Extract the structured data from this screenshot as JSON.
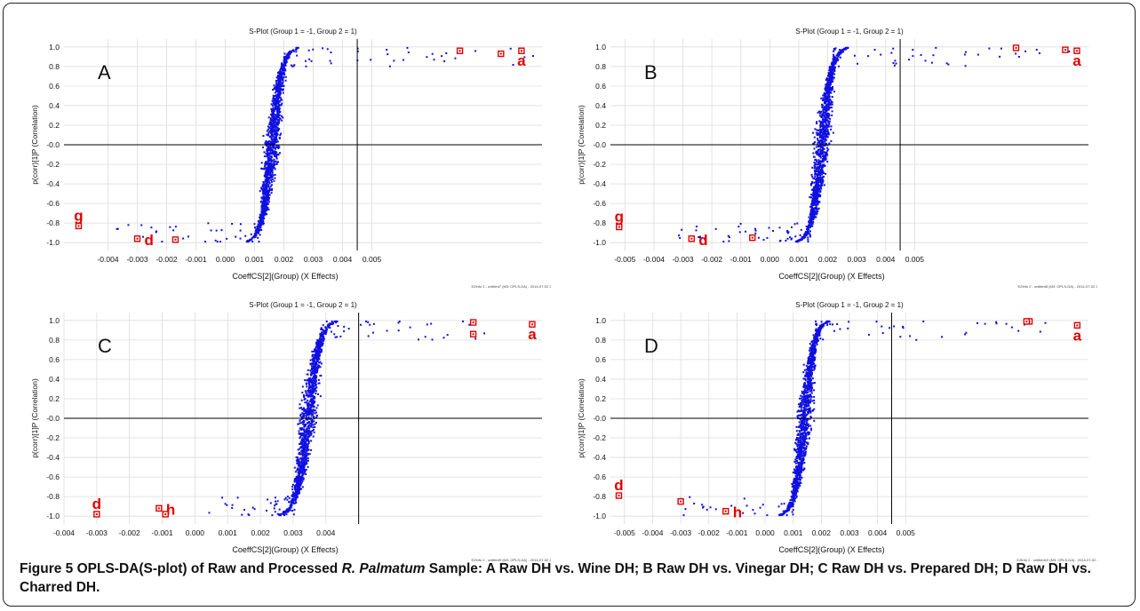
{
  "chart_data": [
    {
      "panel": "A",
      "type": "scatter",
      "title": "S-Plot (Group 1 = -1, Group 2 = 1)",
      "xlabel": "CoeffCS[2](Group) (X Effects)",
      "ylabel": "p(corr)[1]P (Correlation)",
      "footer": "EZinfo 2 - untitled7 (M3: OPLS-DA) - 2014-07-02 22:20:33 (UTC-8)",
      "xlim": [
        -0.0055,
        0.0108
      ],
      "ylim": [
        -1.08,
        1.08
      ],
      "xticks": [
        -0.004,
        -0.003,
        -0.002,
        -0.001,
        0.0,
        0.001,
        0.002,
        0.003,
        0.004,
        0.005
      ],
      "xticklabels": [
        "-0.004",
        "-0.003",
        "-0.002",
        "-0.001",
        "0.000",
        "0.001",
        "0.002",
        "0.003",
        "0.004",
        "0.005"
      ],
      "yticks": [
        -1.0,
        -0.8,
        -0.6,
        -0.4,
        -0.2,
        0.0,
        0.2,
        0.4,
        0.6,
        0.8,
        1.0
      ],
      "yticklabels": [
        "-1.0",
        "-0.8",
        "-0.6",
        "-0.4",
        "-0.2",
        "-0.0",
        "0.2",
        "0.4",
        "0.6",
        "0.8",
        "1.0"
      ],
      "scurve": {
        "x_lo": -0.0012,
        "x_hi": 0.0034,
        "x_neg_outlier": -0.004,
        "x_pos_outlier": 0.0105
      },
      "cloud_shift": 0.0045,
      "highlighted": [
        {
          "x": 0.0101,
          "y": 0.96,
          "label": "a"
        },
        {
          "x": 0.0094,
          "y": 0.93,
          "label": ""
        },
        {
          "x": 0.008,
          "y": 0.96,
          "label": ""
        },
        {
          "x": -0.005,
          "y": -0.83,
          "label": "g"
        },
        {
          "x": -0.003,
          "y": -0.96,
          "label": "d"
        },
        {
          "x": -0.0017,
          "y": -0.97,
          "label": ""
        }
      ],
      "panel_letter": "A"
    },
    {
      "panel": "B",
      "type": "scatter",
      "title": "S-Plot (Group 1 = -1, Group 2 = 1)",
      "xlabel": "CoeffCS[2](Group) (X Effects)",
      "ylabel": "p(corr)[1]P (Correlation)",
      "footer": "EZinfo 2 - untitled8 (M3: OPLS-DA) - 2014-07-02 22:24:28 (UTC-8)",
      "xlim": [
        -0.0055,
        0.011
      ],
      "ylim": [
        -1.08,
        1.08
      ],
      "xticks": [
        -0.005,
        -0.004,
        -0.003,
        -0.002,
        -0.001,
        0.0,
        0.001,
        0.002,
        0.003,
        0.004,
        0.005
      ],
      "xticklabels": [
        "-0.005",
        "-0.004",
        "-0.003",
        "-0.002",
        "-0.001",
        "0.000",
        "0.001",
        "0.002",
        "0.003",
        "0.004",
        "0.005"
      ],
      "yticks": [
        -1.0,
        -0.8,
        -0.6,
        -0.4,
        -0.2,
        0.0,
        0.2,
        0.4,
        0.6,
        0.8,
        1.0
      ],
      "yticklabels": [
        "-1.0",
        "-0.8",
        "-0.6",
        "-0.4",
        "-0.2",
        "-0.0",
        "0.2",
        "0.4",
        "0.6",
        "0.8",
        "1.0"
      ],
      "scurve": {
        "x_lo": -0.0008,
        "x_hi": 0.0034,
        "x_neg_outlier": -0.0028,
        "x_pos_outlier": 0.0104
      },
      "cloud_shift": 0.0045,
      "highlighted": [
        {
          "x": 0.0106,
          "y": 0.96,
          "label": "a"
        },
        {
          "x": 0.0102,
          "y": 0.97,
          "label": ""
        },
        {
          "x": 0.0085,
          "y": 0.99,
          "label": ""
        },
        {
          "x": -0.0052,
          "y": -0.84,
          "label": "g"
        },
        {
          "x": -0.0027,
          "y": -0.96,
          "label": "d"
        },
        {
          "x": -0.0006,
          "y": -0.95,
          "label": ""
        }
      ],
      "panel_letter": "B"
    },
    {
      "panel": "C",
      "type": "scatter",
      "title": "S-Plot (Group 1 = -1, Group 2 = 1)",
      "xlabel": "CoeffCS[2](Group) (X Effects)",
      "ylabel": "p(corr)[1]P (Correlation)",
      "footer": "EZinfo 2 - untitled9 (M3: OPLS-DA) - 2014-07-02 22:30:38 (UTC-8)",
      "xlim": [
        -0.004,
        0.0106
      ],
      "ylim": [
        -1.08,
        1.08
      ],
      "xticks": [
        -0.004,
        -0.003,
        -0.002,
        -0.001,
        0.0,
        0.001,
        0.002,
        0.003,
        0.004
      ],
      "xticklabels": [
        "-0.004",
        "-0.003",
        "-0.002",
        "-0.001",
        "0.000",
        "0.001",
        "0.002",
        "0.003",
        "0.004"
      ],
      "yticks": [
        -1.0,
        -0.8,
        -0.6,
        -0.4,
        -0.2,
        0.0,
        0.2,
        0.4,
        0.6,
        0.8,
        1.0
      ],
      "yticklabels": [
        "-1.0",
        "-0.8",
        "-0.6",
        "-0.4",
        "-0.2",
        "-0.0",
        "0.2",
        "0.4",
        "0.6",
        "0.8",
        "1.0"
      ],
      "scurve": {
        "x_lo": 0.0004,
        "x_hi": 0.0055,
        "x_neg_outlier": 0.0004,
        "x_pos_outlier": 0.0085
      },
      "cloud_shift": 0.005,
      "highlighted": [
        {
          "x": 0.0103,
          "y": 0.96,
          "label": "a"
        },
        {
          "x": 0.0085,
          "y": 0.98,
          "label": ""
        },
        {
          "x": 0.0085,
          "y": 0.86,
          "label": ""
        },
        {
          "x": -0.003,
          "y": -0.98,
          "label": "d"
        },
        {
          "x": -0.0011,
          "y": -0.92,
          "label": "h"
        },
        {
          "x": -0.0009,
          "y": -0.98,
          "label": ""
        }
      ],
      "panel_letter": "C"
    },
    {
      "panel": "D",
      "type": "scatter",
      "title": "S-Plot (Group 1 = -1, Group 2 = 1)",
      "xlabel": "CoeffCS[2](Group) (X Effects)",
      "ylabel": "p(corr)[1]P (Correlation)",
      "footer": "EZinfo 2 - untitled10 (M3: OPLS-DA) - 2014-07-02 22:33:16 (UTC-8)",
      "xlim": [
        -0.0055,
        0.0115
      ],
      "ylim": [
        -1.08,
        1.08
      ],
      "xticks": [
        -0.005,
        -0.004,
        -0.003,
        -0.002,
        -0.001,
        0.0,
        0.001,
        0.002,
        0.003,
        0.004,
        0.005
      ],
      "xticklabels": [
        "-0.005",
        "-0.004",
        "-0.003",
        "-0.002",
        "-0.001",
        "0.000",
        "0.001",
        "0.002",
        "0.003",
        "0.004",
        "0.005"
      ],
      "yticks": [
        -1.0,
        -0.8,
        -0.6,
        -0.4,
        -0.2,
        0.0,
        0.2,
        0.4,
        0.6,
        0.8,
        1.0
      ],
      "yticklabels": [
        "-1.0",
        "-0.8",
        "-0.6",
        "-0.4",
        "-0.2",
        "-0.0",
        "0.2",
        "0.4",
        "0.6",
        "0.8",
        "1.0"
      ],
      "scurve": {
        "x_lo": -0.0016,
        "x_hi": 0.0034,
        "x_neg_outlier": -0.003,
        "x_pos_outlier": 0.0106
      },
      "cloud_shift": 0.0045,
      "highlighted": [
        {
          "x": 0.0111,
          "y": 0.95,
          "label": "a"
        },
        {
          "x": 0.0094,
          "y": 0.99,
          "label": ""
        },
        {
          "x": 0.0093,
          "y": 0.99,
          "label": ""
        },
        {
          "x": -0.0052,
          "y": -0.79,
          "label": "d"
        },
        {
          "x": -0.003,
          "y": -0.85,
          "label": ""
        },
        {
          "x": -0.0014,
          "y": -0.95,
          "label": "h"
        }
      ],
      "panel_letter": "D"
    }
  ],
  "colors": {
    "points": "#1010e0",
    "highlight": "#e00000",
    "axis_lines": "#000000",
    "grid": "#dcdcdc"
  },
  "caption": {
    "figure_label": "Figure 5",
    "text_before_italic": " OPLS-DA(S-plot) of Raw and Processed ",
    "italic_species": "R. Palmatum",
    "text_after_italic": " Sample: A Raw DH vs. Wine DH; B Raw DH vs. Vinegar DH; C Raw DH vs. Prepared DH; D Raw DH vs. Charred DH."
  }
}
